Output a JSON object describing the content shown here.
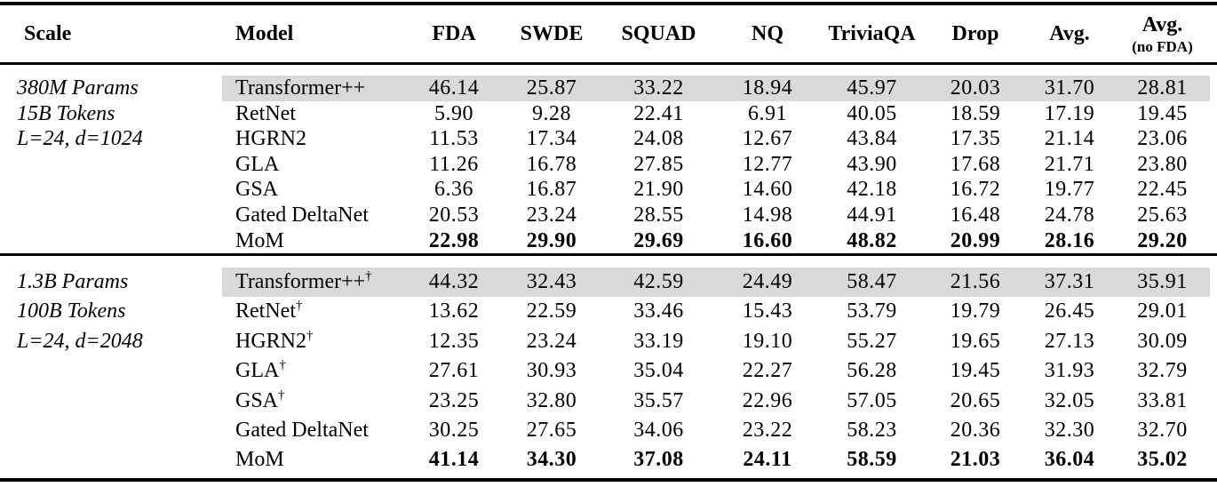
{
  "colors": {
    "background": "#ffffff",
    "text": "#000000",
    "rule": "#000000",
    "highlight_row": "#d9d9d9"
  },
  "symbols": {
    "dagger": "†"
  },
  "table": {
    "headers": [
      {
        "label": "Scale"
      },
      {
        "label": "Model"
      },
      {
        "label": "FDA"
      },
      {
        "label": "SWDE"
      },
      {
        "label": "SQUAD"
      },
      {
        "label": "NQ"
      },
      {
        "label": "TriviaQA"
      },
      {
        "label": "Drop"
      },
      {
        "label": "Avg."
      },
      {
        "label": "Avg.",
        "sublabel": "(no FDA)"
      }
    ],
    "sections": [
      {
        "scale_lines": [
          "380M Params",
          "15B Tokens",
          "L=24, d=1024"
        ],
        "rows": [
          {
            "model": "Transformer++",
            "dagger": false,
            "highlight": true,
            "bold": false,
            "values": [
              "46.14",
              "25.87",
              "33.22",
              "18.94",
              "45.97",
              "20.03",
              "31.70",
              "28.81"
            ]
          },
          {
            "model": "RetNet",
            "dagger": false,
            "highlight": false,
            "bold": false,
            "values": [
              "5.90",
              "9.28",
              "22.41",
              "6.91",
              "40.05",
              "18.59",
              "17.19",
              "19.45"
            ]
          },
          {
            "model": "HGRN2",
            "dagger": false,
            "highlight": false,
            "bold": false,
            "values": [
              "11.53",
              "17.34",
              "24.08",
              "12.67",
              "43.84",
              "17.35",
              "21.14",
              "23.06"
            ]
          },
          {
            "model": "GLA",
            "dagger": false,
            "highlight": false,
            "bold": false,
            "values": [
              "11.26",
              "16.78",
              "27.85",
              "12.77",
              "43.90",
              "17.68",
              "21.71",
              "23.80"
            ]
          },
          {
            "model": "GSA",
            "dagger": false,
            "highlight": false,
            "bold": false,
            "values": [
              "6.36",
              "16.87",
              "21.90",
              "14.60",
              "42.18",
              "16.72",
              "19.77",
              "22.45"
            ]
          },
          {
            "model": "Gated DeltaNet",
            "dagger": false,
            "highlight": false,
            "bold": false,
            "values": [
              "20.53",
              "23.24",
              "28.55",
              "14.98",
              "44.91",
              "16.48",
              "24.78",
              "25.63"
            ]
          },
          {
            "model": "MoM",
            "dagger": false,
            "highlight": false,
            "bold": true,
            "values": [
              "22.98",
              "29.90",
              "29.69",
              "16.60",
              "48.82",
              "20.99",
              "28.16",
              "29.20"
            ]
          }
        ]
      },
      {
        "scale_lines": [
          "1.3B Params",
          "100B Tokens",
          "L=24, d=2048"
        ],
        "rows": [
          {
            "model": "Transformer++",
            "dagger": true,
            "highlight": true,
            "bold": false,
            "values": [
              "44.32",
              "32.43",
              "42.59",
              "24.49",
              "58.47",
              "21.56",
              "37.31",
              "35.91"
            ]
          },
          {
            "model": "RetNet",
            "dagger": true,
            "highlight": false,
            "bold": false,
            "values": [
              "13.62",
              "22.59",
              "33.46",
              "15.43",
              "53.79",
              "19.79",
              "26.45",
              "29.01"
            ]
          },
          {
            "model": "HGRN2",
            "dagger": true,
            "highlight": false,
            "bold": false,
            "values": [
              "12.35",
              "23.24",
              "33.19",
              "19.10",
              "55.27",
              "19.65",
              "27.13",
              "30.09"
            ]
          },
          {
            "model": "GLA",
            "dagger": true,
            "highlight": false,
            "bold": false,
            "values": [
              "27.61",
              "30.93",
              "35.04",
              "22.27",
              "56.28",
              "19.45",
              "31.93",
              "32.79"
            ]
          },
          {
            "model": "GSA",
            "dagger": true,
            "highlight": false,
            "bold": false,
            "values": [
              "23.25",
              "32.80",
              "35.57",
              "22.96",
              "57.05",
              "20.65",
              "32.05",
              "33.81"
            ]
          },
          {
            "model": "Gated DeltaNet",
            "dagger": false,
            "highlight": false,
            "bold": false,
            "values": [
              "30.25",
              "27.65",
              "34.06",
              "23.22",
              "58.23",
              "20.36",
              "32.30",
              "32.70"
            ]
          },
          {
            "model": "MoM",
            "dagger": false,
            "highlight": false,
            "bold": true,
            "values": [
              "41.14",
              "34.30",
              "37.08",
              "24.11",
              "58.59",
              "21.03",
              "36.04",
              "35.02"
            ]
          }
        ]
      }
    ]
  }
}
